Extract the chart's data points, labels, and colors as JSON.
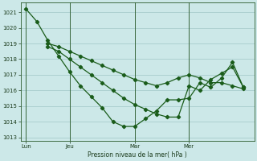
{
  "background_color": "#cce8e8",
  "grid_color": "#a8cccc",
  "line_color": "#1a5c1a",
  "ylabel": "Pression niveau de la mer( hPa )",
  "ylim": [
    1012.8,
    1021.6
  ],
  "yticks": [
    1013,
    1014,
    1015,
    1016,
    1017,
    1018,
    1019,
    1020,
    1021
  ],
  "xtick_labels": [
    "Lun",
    "Jeu",
    "Mar",
    "Mer"
  ],
  "s1_x": [
    0,
    1,
    2,
    3,
    4,
    5,
    6,
    7,
    8,
    9,
    10,
    11,
    12,
    13,
    14,
    15,
    16,
    17,
    18,
    19,
    20
  ],
  "s1_y": [
    1021.2,
    1020.4,
    1019.2,
    1018.2,
    1017.2,
    1016.3,
    1015.6,
    1014.9,
    1014.0,
    1013.7,
    1013.7,
    1014.2,
    1014.7,
    1015.4,
    1015.4,
    1015.5,
    1016.5,
    1016.2,
    1016.8,
    1017.8,
    1016.2
  ],
  "s2_x": [
    2,
    3,
    4,
    5,
    6,
    7,
    8,
    9,
    10,
    11,
    12,
    13,
    14,
    15,
    16,
    17,
    18,
    19,
    20
  ],
  "s2_y": [
    1019.0,
    1018.8,
    1018.5,
    1018.2,
    1017.9,
    1017.6,
    1017.3,
    1017.0,
    1016.7,
    1016.5,
    1016.3,
    1016.5,
    1016.8,
    1017.0,
    1016.8,
    1016.5,
    1016.5,
    1016.3,
    1016.1
  ],
  "s3_x": [
    2,
    3,
    4,
    5,
    6,
    7,
    8,
    9,
    10,
    11,
    12,
    13,
    14,
    15,
    16,
    17,
    18,
    19,
    20
  ],
  "s3_y": [
    1018.8,
    1018.5,
    1018.0,
    1017.5,
    1017.0,
    1016.5,
    1016.0,
    1015.5,
    1015.1,
    1014.8,
    1014.5,
    1014.3,
    1014.3,
    1016.3,
    1016.0,
    1016.7,
    1017.1,
    1017.5,
    1016.2
  ]
}
